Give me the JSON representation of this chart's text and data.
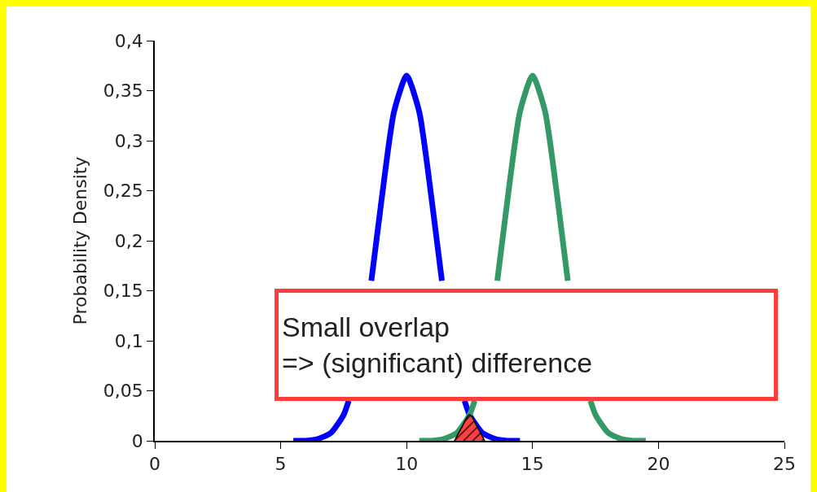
{
  "chart_data": {
    "type": "line",
    "ylabel": "Probability Density",
    "xlim": [
      0,
      25
    ],
    "xticks": [
      0,
      5,
      10,
      15,
      20,
      25
    ],
    "ylim": [
      0,
      0.4
    ],
    "yticks": [
      {
        "value": 0,
        "label": "0"
      },
      {
        "value": 0.05,
        "label": "0,05"
      },
      {
        "value": 0.1,
        "label": "0,1"
      },
      {
        "value": 0.15,
        "label": "0,15"
      },
      {
        "value": 0.2,
        "label": "0,2"
      },
      {
        "value": 0.25,
        "label": "0,25"
      },
      {
        "value": 0.3,
        "label": "0,3"
      },
      {
        "value": 0.35,
        "label": "0,35"
      },
      {
        "value": 0.4,
        "label": "0,4"
      }
    ],
    "series": [
      {
        "color": "#0000ff",
        "x": [
          5.5,
          6,
          6.5,
          7,
          7.5,
          7.7,
          8.1,
          8.6,
          9,
          9.5,
          10,
          10.5,
          11,
          11.4,
          11.9,
          12.3,
          12.5,
          13,
          13.5,
          14,
          14.5
        ],
        "values": [
          0,
          0,
          0.002,
          0.008,
          0.026,
          0.04,
          null,
          0.16,
          0.24,
          0.329,
          0.365,
          0.329,
          0.24,
          0.16,
          null,
          0.04,
          0.026,
          0.008,
          0.002,
          0,
          0
        ]
      },
      {
        "color": "#339966",
        "x": [
          10.5,
          11,
          11.5,
          12,
          12.5,
          12.7,
          13.1,
          13.6,
          14,
          14.5,
          15,
          15.5,
          16,
          16.4,
          16.9,
          17.3,
          17.5,
          18,
          18.5,
          19,
          19.5
        ],
        "values": [
          0,
          0,
          0.002,
          0.008,
          0.026,
          0.04,
          null,
          0.16,
          0.24,
          0.329,
          0.365,
          0.329,
          0.24,
          0.16,
          null,
          0.04,
          0.026,
          0.008,
          0.002,
          0,
          0
        ]
      },
      {
        "type": "area",
        "color": "#ff4040",
        "x": [
          11.9,
          12.2,
          12.5,
          12.8,
          13.1
        ],
        "values": [
          0,
          0.014,
          0.026,
          0.014,
          0
        ]
      }
    ],
    "legend": false,
    "annotations": [
      "Small overlap\n=> (significant) difference"
    ]
  }
}
